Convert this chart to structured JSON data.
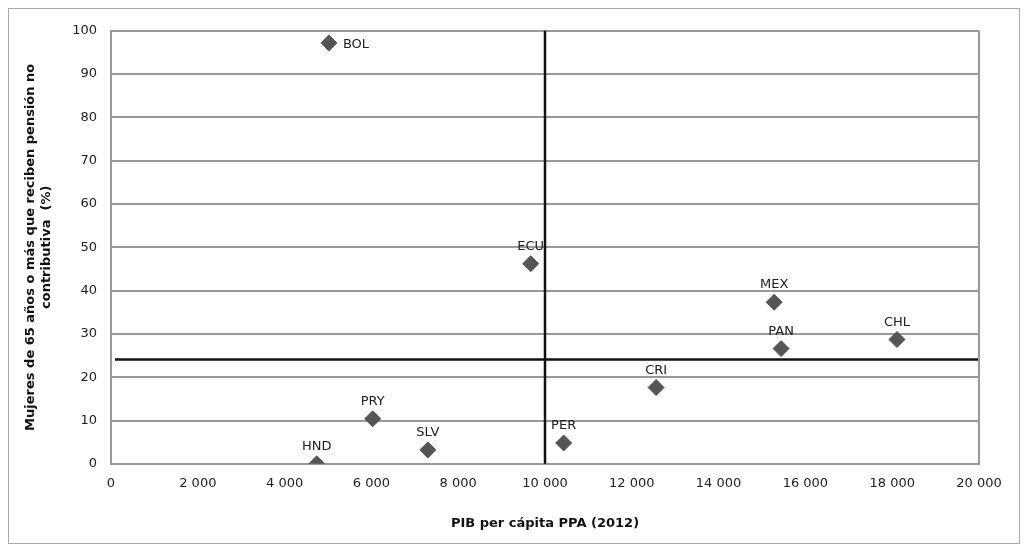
{
  "chart_data": {
    "type": "scatter",
    "xlabel": "PIB per cápita PPA (2012)",
    "ylabel": "Mujeres de 65 años o más que reciben pensión no contributiva  (%)",
    "series": [
      {
        "color": "#555555",
        "x": [
          5020,
          9670,
          4740,
          6030,
          7300,
          10430,
          12560,
          15280,
          15440,
          18110
        ],
        "values": [
          97.2,
          46.2,
          0,
          10.4,
          3.2,
          4.8,
          17.6,
          37.3,
          26.6,
          28.7
        ]
      }
    ],
    "annotations": [
      {
        "text": "BOL",
        "x": 5020,
        "y": 97.2
      },
      {
        "text": "ECU",
        "x": 9670,
        "y": 46.2
      },
      {
        "text": "HND",
        "x": 4740,
        "y": 0
      },
      {
        "text": "PRY",
        "x": 6030,
        "y": 10.4
      },
      {
        "text": "SLV",
        "x": 7300,
        "y": 3.2
      },
      {
        "text": "PER",
        "x": 10430,
        "y": 4.8
      },
      {
        "text": "CRI",
        "x": 12560,
        "y": 17.6
      },
      {
        "text": "MEX",
        "x": 15280,
        "y": 37.3
      },
      {
        "text": "PAN",
        "x": 15440,
        "y": 26.6
      },
      {
        "text": "CHL",
        "x": 18110,
        "y": 28.7
      }
    ],
    "ref_lines": [
      {
        "axis": "x",
        "value": 10000,
        "color": "#111111"
      },
      {
        "axis": "y",
        "value": 24.1,
        "color": "#111111"
      }
    ],
    "xlim": [
      0,
      20000
    ],
    "xticks": [
      0,
      {
        "value": 2000,
        "label": "2 000"
      },
      {
        "value": 4000,
        "label": "4 000"
      },
      {
        "value": 6000,
        "label": "6 000"
      },
      {
        "value": 8000,
        "label": "8 000"
      },
      {
        "value": 10000,
        "label": "10 000"
      },
      {
        "value": 12000,
        "label": "12 000"
      },
      {
        "value": 14000,
        "label": "14 000"
      },
      {
        "value": 16000,
        "label": "16 000"
      },
      {
        "value": 18000,
        "label": "18 000"
      },
      {
        "value": 20000,
        "label": "20 000"
      }
    ],
    "ylim": [
      0,
      100
    ],
    "yticks": [
      0,
      10,
      20,
      30,
      40,
      50,
      60,
      70,
      80,
      90,
      100
    ],
    "grid": "y",
    "legend": false,
    "marker": "diamond"
  }
}
